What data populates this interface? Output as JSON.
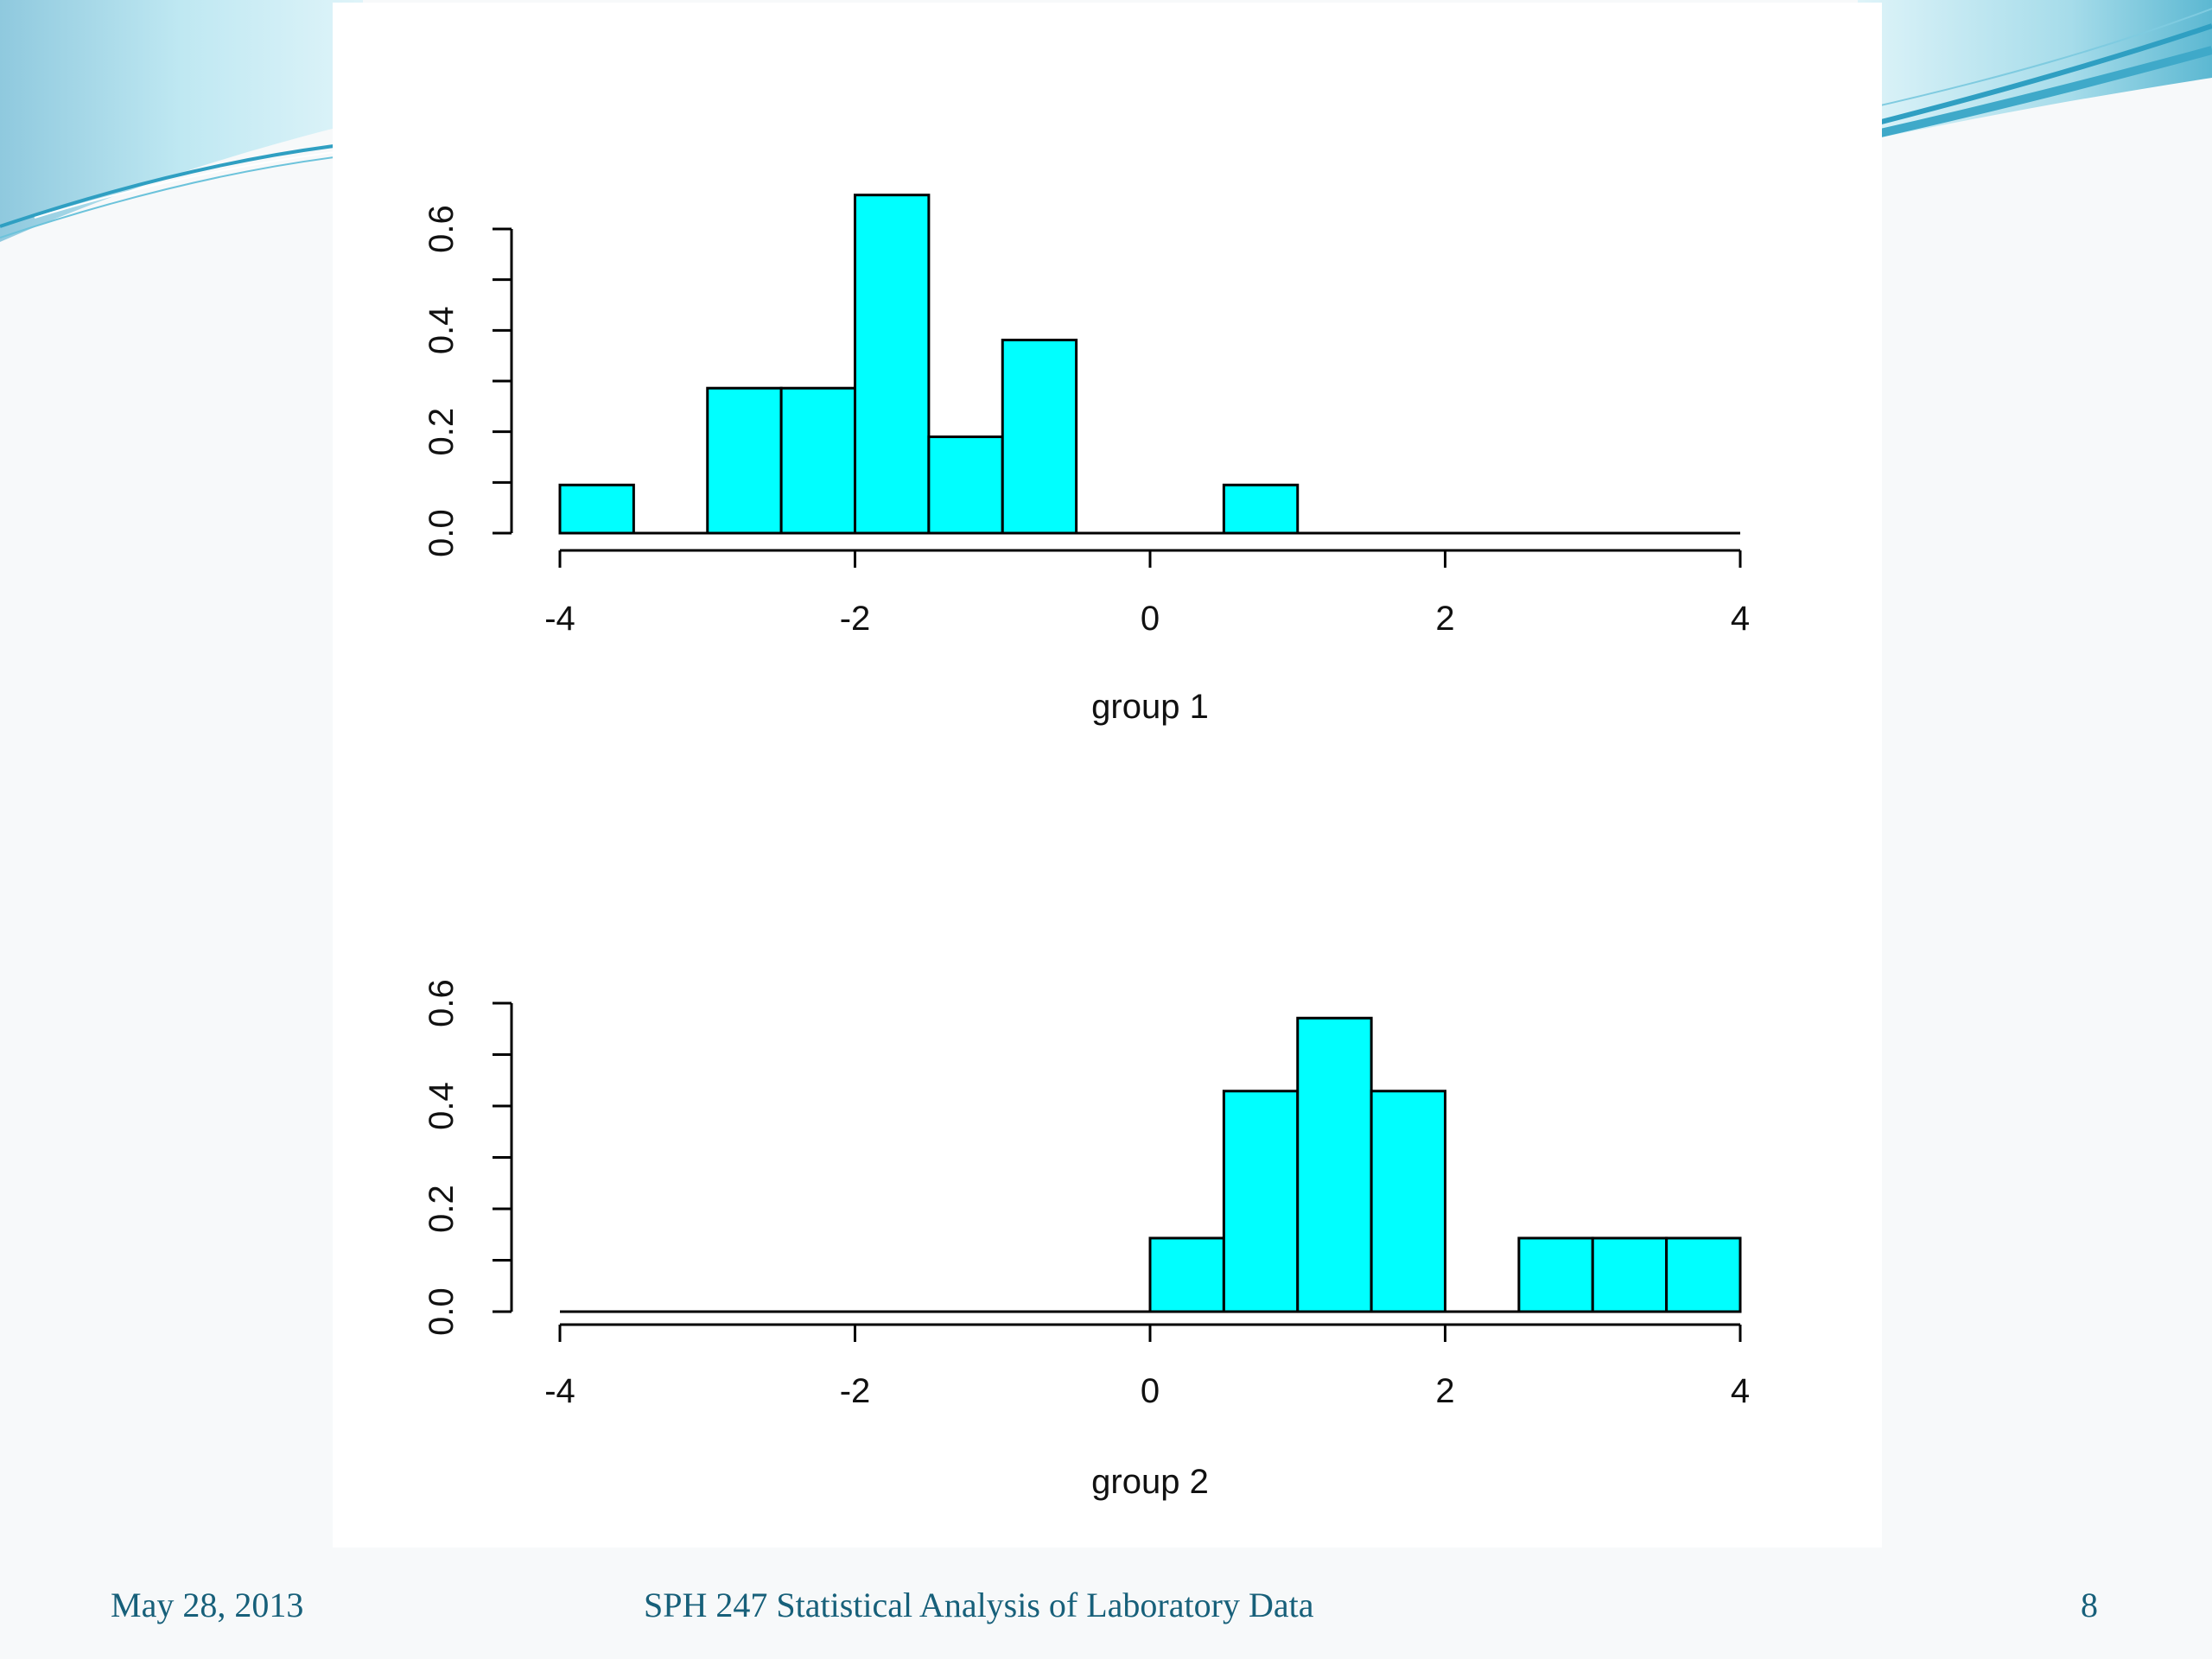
{
  "footer": {
    "date": "May 28, 2013",
    "title": "SPH 247 Statistical Analysis of Laboratory Data",
    "page_number": "8"
  },
  "colors": {
    "bar_fill": "#00ffff",
    "bar_stroke": "#000000",
    "footer_text": "#17607a",
    "swoosh_light": "#bfe8f2",
    "swoosh_dark": "#3fa9c9"
  },
  "chart_data": [
    {
      "type": "bar",
      "subtype": "histogram",
      "title": "",
      "xlabel": "group 1",
      "ylabel": "",
      "xlim": [
        -4,
        4
      ],
      "ylim": [
        0,
        0.6
      ],
      "x_ticks": [
        "-4",
        "-2",
        "0",
        "2",
        "4"
      ],
      "y_ticks": [
        "0.0",
        "0.2",
        "0.4",
        "0.6"
      ],
      "bin_width": 0.5,
      "bins": [
        {
          "start": -4.0,
          "end": -3.5,
          "density": 0.095
        },
        {
          "start": -3.5,
          "end": -3.0,
          "density": 0.0
        },
        {
          "start": -3.0,
          "end": -2.5,
          "density": 0.286
        },
        {
          "start": -2.5,
          "end": -2.0,
          "density": 0.286
        },
        {
          "start": -2.0,
          "end": -1.5,
          "density": 0.667
        },
        {
          "start": -1.5,
          "end": -1.0,
          "density": 0.19
        },
        {
          "start": -1.0,
          "end": -0.5,
          "density": 0.381
        },
        {
          "start": -0.5,
          "end": 0.0,
          "density": 0.0
        },
        {
          "start": 0.0,
          "end": 0.5,
          "density": 0.0
        },
        {
          "start": 0.5,
          "end": 1.0,
          "density": 0.095
        },
        {
          "start": 1.0,
          "end": 1.5,
          "density": 0.0
        },
        {
          "start": 1.5,
          "end": 2.0,
          "density": 0.0
        },
        {
          "start": 2.0,
          "end": 2.5,
          "density": 0.0
        },
        {
          "start": 2.5,
          "end": 3.0,
          "density": 0.0
        },
        {
          "start": 3.0,
          "end": 3.5,
          "density": 0.0
        },
        {
          "start": 3.5,
          "end": 4.0,
          "density": 0.0
        }
      ]
    },
    {
      "type": "bar",
      "subtype": "histogram",
      "title": "",
      "xlabel": "group 2",
      "ylabel": "",
      "xlim": [
        -4,
        4
      ],
      "ylim": [
        0,
        0.6
      ],
      "x_ticks": [
        "-4",
        "-2",
        "0",
        "2",
        "4"
      ],
      "y_ticks": [
        "0.0",
        "0.2",
        "0.4",
        "0.6"
      ],
      "bin_width": 0.5,
      "bins": [
        {
          "start": -4.0,
          "end": -3.5,
          "density": 0.0
        },
        {
          "start": -3.5,
          "end": -3.0,
          "density": 0.0
        },
        {
          "start": -3.0,
          "end": -2.5,
          "density": 0.0
        },
        {
          "start": -2.5,
          "end": -2.0,
          "density": 0.0
        },
        {
          "start": -2.0,
          "end": -1.5,
          "density": 0.0
        },
        {
          "start": -1.5,
          "end": -1.0,
          "density": 0.0
        },
        {
          "start": -1.0,
          "end": -0.5,
          "density": 0.0
        },
        {
          "start": -0.5,
          "end": 0.0,
          "density": 0.0
        },
        {
          "start": 0.0,
          "end": 0.5,
          "density": 0.143
        },
        {
          "start": 0.5,
          "end": 1.0,
          "density": 0.429
        },
        {
          "start": 1.0,
          "end": 1.5,
          "density": 0.571
        },
        {
          "start": 1.5,
          "end": 2.0,
          "density": 0.429
        },
        {
          "start": 2.0,
          "end": 2.5,
          "density": 0.0
        },
        {
          "start": 2.5,
          "end": 3.0,
          "density": 0.143
        },
        {
          "start": 3.0,
          "end": 3.5,
          "density": 0.143
        },
        {
          "start": 3.5,
          "end": 4.0,
          "density": 0.143
        }
      ]
    }
  ]
}
